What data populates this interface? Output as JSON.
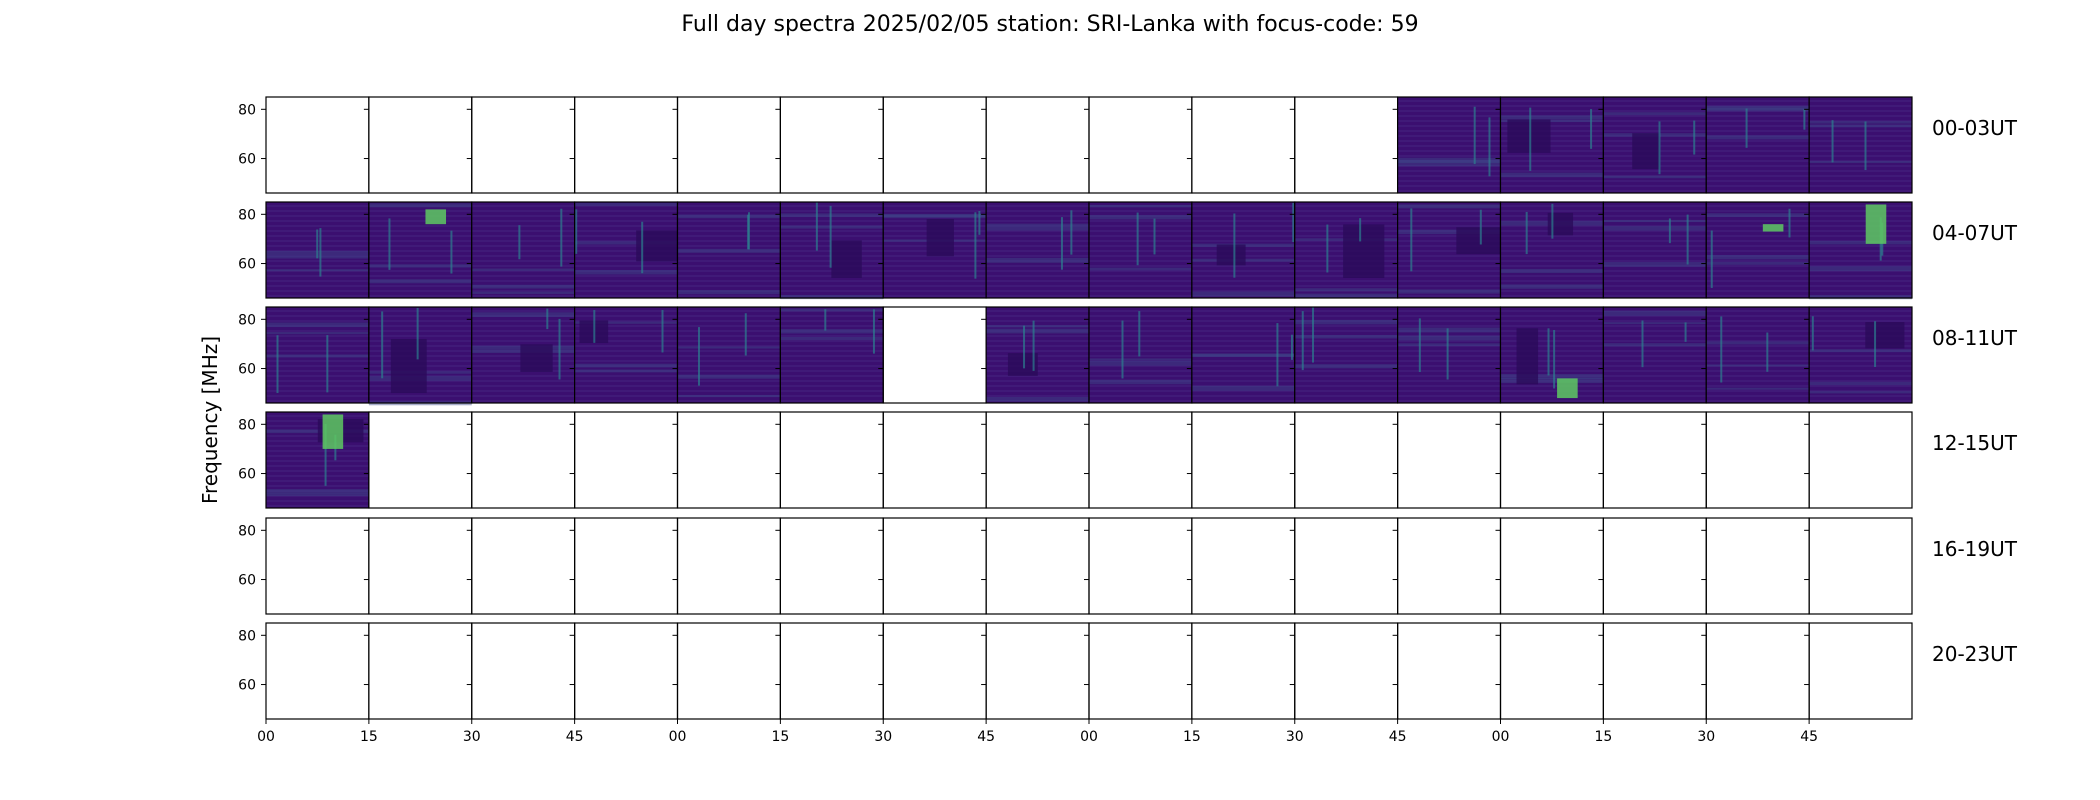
{
  "chart_data": {
    "type": "heatmap",
    "title": "Full day spectra 2025/02/05 station: SRI-Lanka with focus-code: 59",
    "ylabel": "Frequency [MHz]",
    "yticks": [
      60,
      80
    ],
    "ylim": [
      46,
      85
    ],
    "xticks": [
      "00",
      "15",
      "30",
      "45",
      "00",
      "15",
      "30",
      "45",
      "00",
      "15",
      "30",
      "45",
      "00",
      "15",
      "30",
      "45"
    ],
    "panels_per_row": 16,
    "panel_minutes": 15,
    "colormap": "viridis",
    "colors": {
      "base": "#3b0f70",
      "dark": "#2b0a5a",
      "mid": "#3e4a89",
      "bright": "#2c7f8e",
      "hot": "#5ec962"
    },
    "rows": [
      {
        "label": "00-03UT",
        "data_present": [
          0,
          0,
          0,
          0,
          0,
          0,
          0,
          0,
          0,
          0,
          0,
          1,
          1,
          1,
          1,
          1
        ]
      },
      {
        "label": "04-07UT",
        "data_present": [
          1,
          1,
          1,
          1,
          1,
          1,
          1,
          1,
          1,
          1,
          1,
          1,
          1,
          1,
          1,
          1
        ]
      },
      {
        "label": "08-11UT",
        "data_present": [
          1,
          1,
          1,
          1,
          1,
          1,
          0,
          1,
          1,
          1,
          1,
          1,
          1,
          1,
          1,
          1
        ]
      },
      {
        "label": "12-15UT",
        "data_present": [
          1,
          0,
          0,
          0,
          0,
          0,
          0,
          0,
          0,
          0,
          0,
          0,
          0,
          0,
          0,
          0
        ]
      },
      {
        "label": "16-19UT",
        "data_present": [
          0,
          0,
          0,
          0,
          0,
          0,
          0,
          0,
          0,
          0,
          0,
          0,
          0,
          0,
          0,
          0
        ]
      },
      {
        "label": "20-23UT",
        "data_present": [
          0,
          0,
          0,
          0,
          0,
          0,
          0,
          0,
          0,
          0,
          0,
          0,
          0,
          0,
          0,
          0
        ]
      }
    ]
  }
}
